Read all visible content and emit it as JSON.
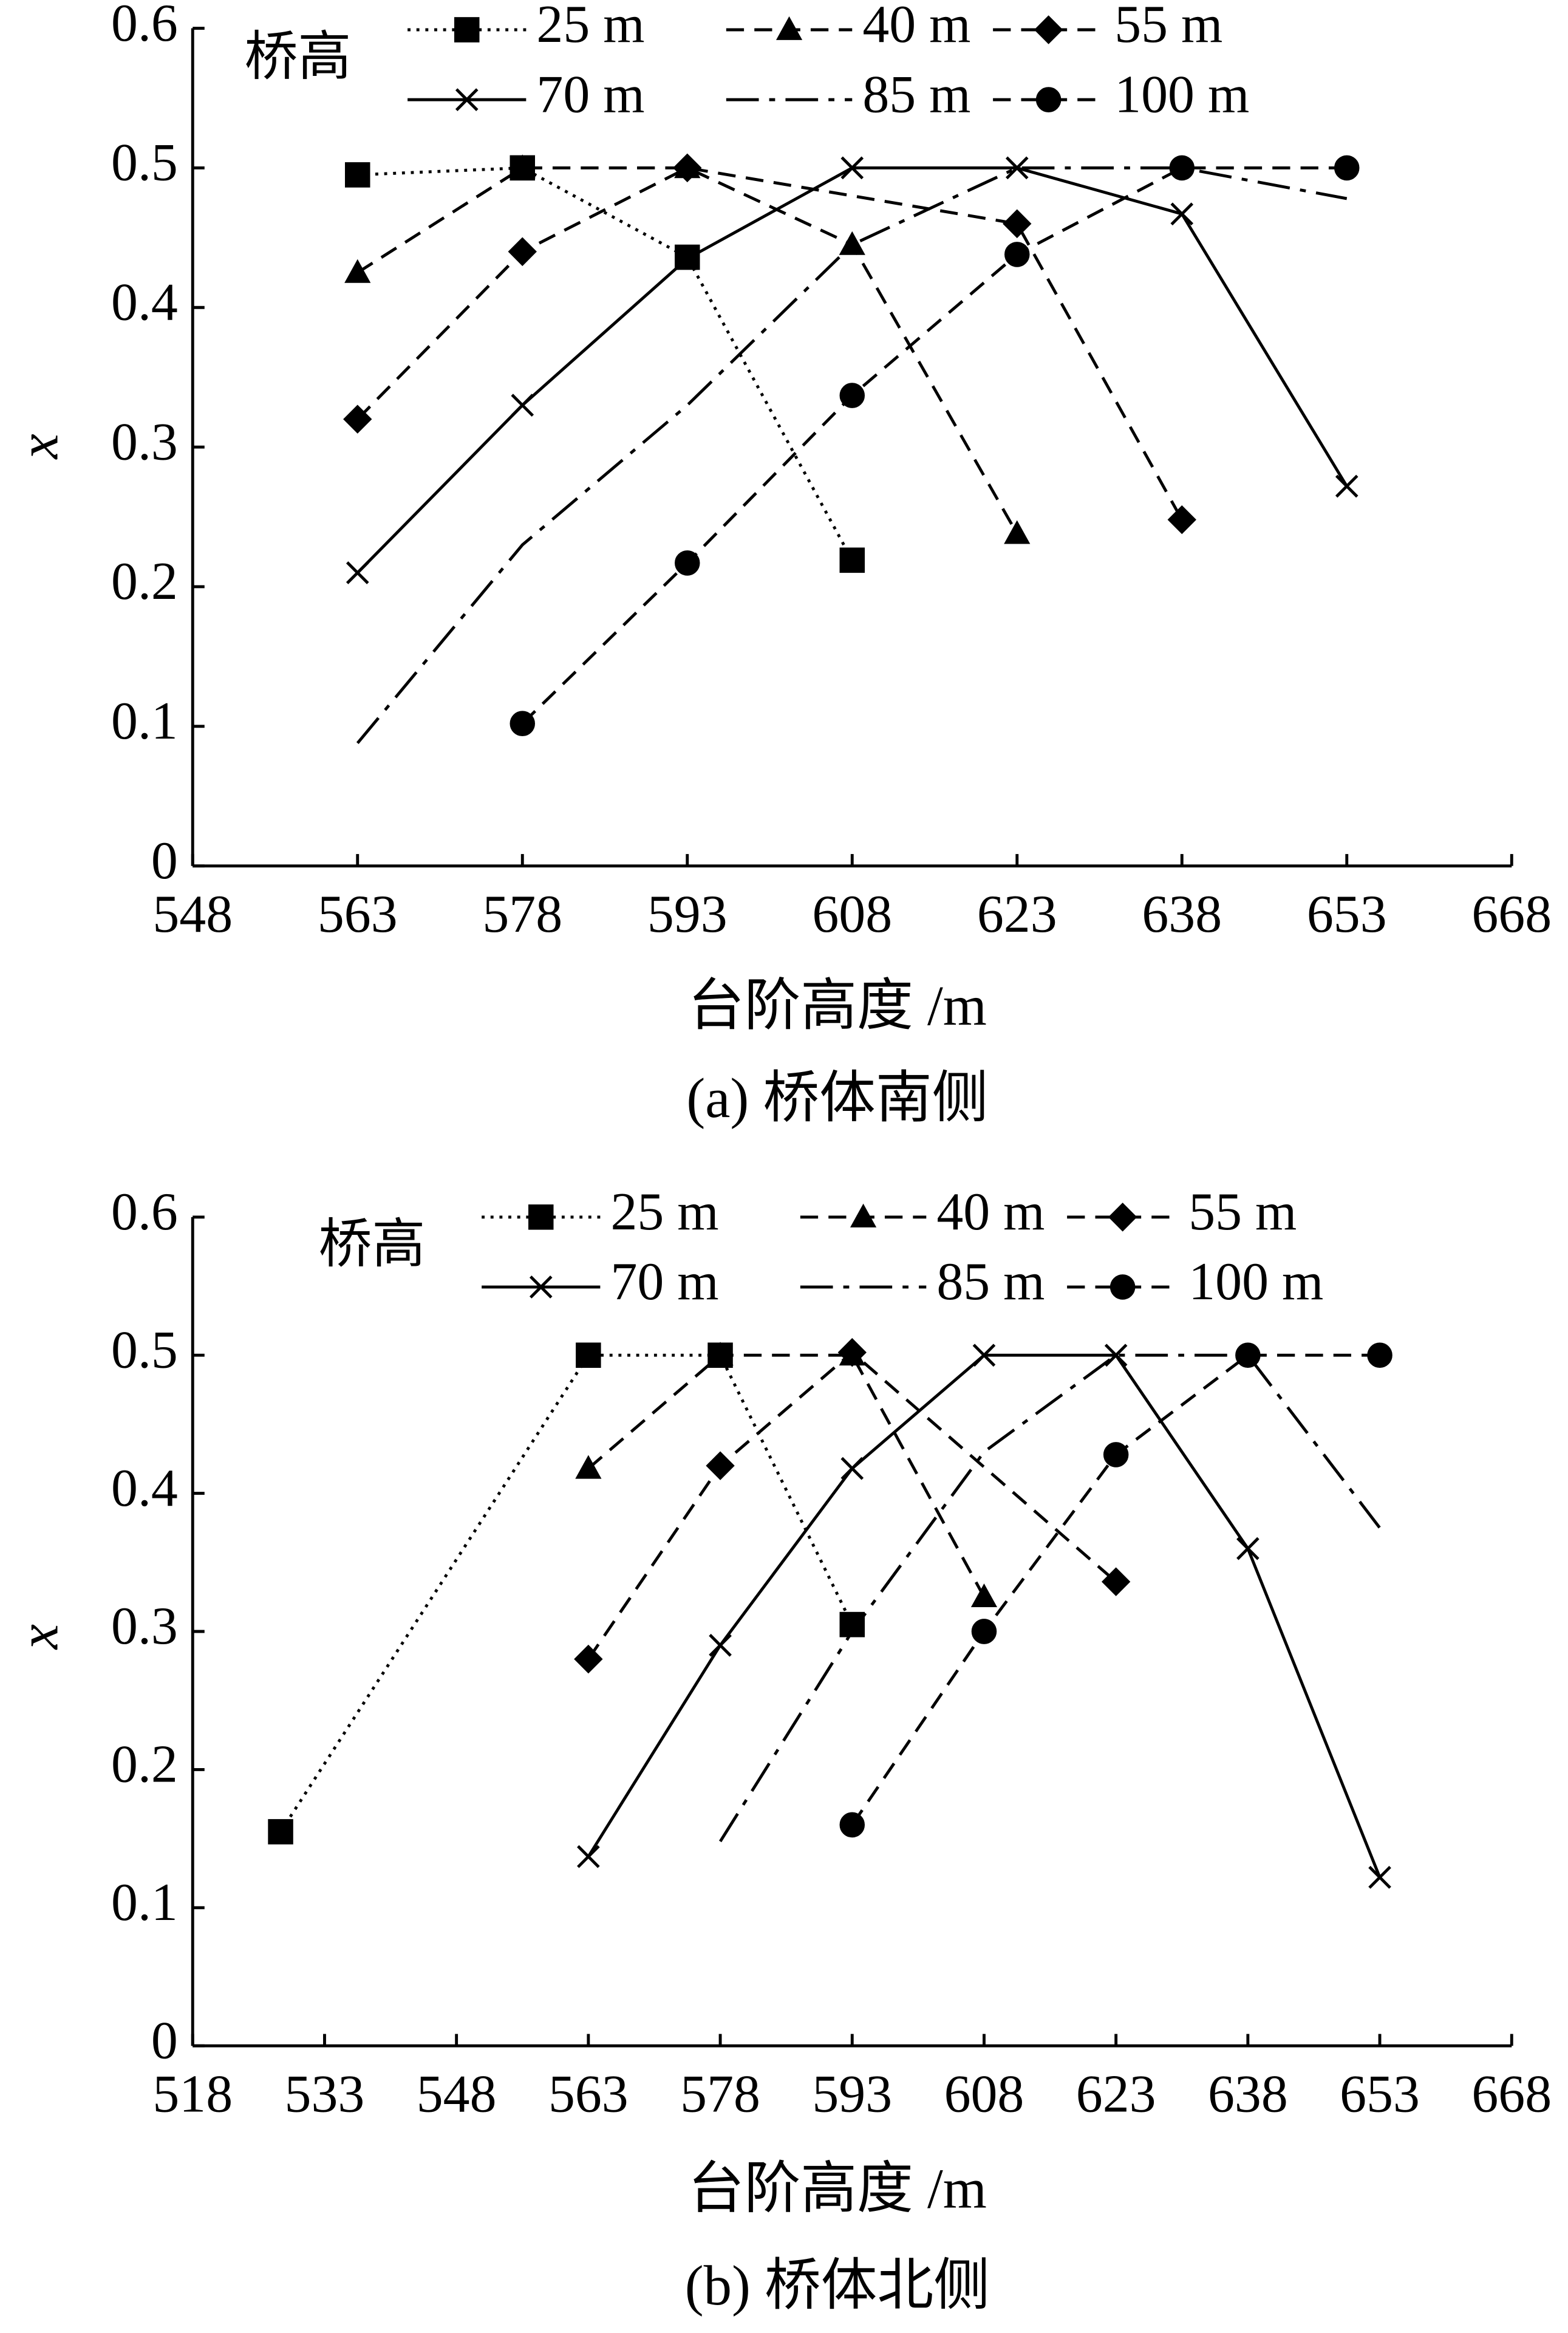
{
  "chart_data": [
    {
      "type": "line",
      "legend_title": "桥高",
      "xlabel": "台阶高度 /m",
      "ylabel": "x",
      "caption": "(a) 桥体南侧",
      "xlim": [
        548,
        668
      ],
      "xticks": [
        548,
        563,
        578,
        593,
        608,
        623,
        638,
        653,
        668
      ],
      "ylim": [
        0,
        0.6
      ],
      "yticks": [
        0,
        0.1,
        0.2,
        0.3,
        0.4,
        0.5,
        0.6
      ],
      "series": [
        {
          "name": "25 m",
          "color": "#000000",
          "linestyle": "dotted",
          "marker": "square",
          "x": [
            563,
            578,
            593,
            608
          ],
          "values": [
            0.495,
            0.5,
            0.436,
            0.219
          ]
        },
        {
          "name": "40 m",
          "color": "#000000",
          "linestyle": "dashed",
          "marker": "triangle",
          "x": [
            563,
            578,
            593,
            608,
            623
          ],
          "values": [
            0.425,
            0.5,
            0.5,
            0.445,
            0.238
          ]
        },
        {
          "name": "55 m",
          "color": "#000000",
          "linestyle": "dashed",
          "marker": "diamond",
          "x": [
            563,
            578,
            593,
            623,
            638
          ],
          "values": [
            0.32,
            0.44,
            0.5,
            0.46,
            0.248
          ]
        },
        {
          "name": "70 m",
          "color": "#000000",
          "linestyle": "solid",
          "marker": "x",
          "x": [
            563,
            578,
            593,
            608,
            623,
            638,
            653
          ],
          "values": [
            0.21,
            0.33,
            0.435,
            0.5,
            0.5,
            0.467,
            0.272
          ]
        },
        {
          "name": "85 m",
          "color": "#000000",
          "linestyle": "dashdot",
          "marker": "none",
          "x": [
            563,
            578,
            593,
            608,
            623,
            638,
            653
          ],
          "values": [
            0.088,
            0.23,
            0.33,
            0.445,
            0.5,
            0.5,
            0.478
          ]
        },
        {
          "name": "100 m",
          "color": "#000000",
          "linestyle": "dashed",
          "marker": "circle",
          "x": [
            578,
            593,
            608,
            623,
            638,
            653
          ],
          "values": [
            0.102,
            0.217,
            0.337,
            0.438,
            0.5,
            0.5
          ]
        }
      ]
    },
    {
      "type": "line",
      "legend_title": "桥高",
      "xlabel": "台阶高度 /m",
      "ylabel": "x",
      "caption": "(b) 桥体北侧",
      "xlim": [
        518,
        668
      ],
      "xticks": [
        518,
        533,
        548,
        563,
        578,
        593,
        608,
        623,
        638,
        653,
        668
      ],
      "ylim": [
        0,
        0.6
      ],
      "yticks": [
        0,
        0.1,
        0.2,
        0.3,
        0.4,
        0.5,
        0.6
      ],
      "series": [
        {
          "name": "25 m",
          "color": "#000000",
          "linestyle": "dotted",
          "marker": "square",
          "x": [
            528,
            563,
            578,
            593
          ],
          "values": [
            0.155,
            0.5,
            0.5,
            0.305
          ]
        },
        {
          "name": "40 m",
          "color": "#000000",
          "linestyle": "dashed",
          "marker": "triangle",
          "x": [
            563,
            578,
            593,
            608
          ],
          "values": [
            0.418,
            0.5,
            0.5,
            0.325
          ]
        },
        {
          "name": "55 m",
          "color": "#000000",
          "linestyle": "dashed",
          "marker": "diamond",
          "x": [
            563,
            578,
            593,
            623
          ],
          "values": [
            0.28,
            0.42,
            0.502,
            0.336
          ]
        },
        {
          "name": "70 m",
          "color": "#000000",
          "linestyle": "solid",
          "marker": "x",
          "x": [
            563,
            578,
            593,
            608,
            623,
            638,
            653
          ],
          "values": [
            0.137,
            0.29,
            0.418,
            0.5,
            0.5,
            0.36,
            0.122
          ]
        },
        {
          "name": "85 m",
          "color": "#000000",
          "linestyle": "dashdot",
          "marker": "none",
          "x": [
            578,
            593,
            608,
            623,
            638,
            653
          ],
          "values": [
            0.148,
            0.3,
            0.43,
            0.5,
            0.5,
            0.375
          ]
        },
        {
          "name": "100 m",
          "color": "#000000",
          "linestyle": "dashed",
          "marker": "circle",
          "x": [
            593,
            608,
            623,
            638,
            653
          ],
          "values": [
            0.16,
            0.3,
            0.428,
            0.5,
            0.5
          ]
        }
      ]
    }
  ]
}
